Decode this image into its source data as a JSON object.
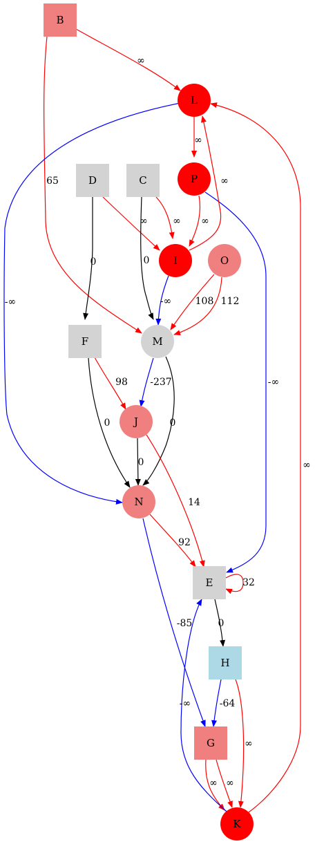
{
  "colors": {
    "red": "#ff0000",
    "salmon": "#f08080",
    "gray": "#d3d3d3",
    "lightblue": "#add8e6",
    "edge_red": "#ff0000",
    "edge_blue": "#0000ff",
    "edge_black": "#000000"
  },
  "nodes": {
    "B": {
      "label": "B",
      "shape": "square",
      "fill": "salmon"
    },
    "L": {
      "label": "L",
      "shape": "circle",
      "fill": "red"
    },
    "D": {
      "label": "D",
      "shape": "square",
      "fill": "gray"
    },
    "C": {
      "label": "C",
      "shape": "square",
      "fill": "gray"
    },
    "P": {
      "label": "P",
      "shape": "circle",
      "fill": "red"
    },
    "I": {
      "label": "I",
      "shape": "circle",
      "fill": "red"
    },
    "O": {
      "label": "O",
      "shape": "circle",
      "fill": "salmon"
    },
    "F": {
      "label": "F",
      "shape": "square",
      "fill": "gray"
    },
    "M": {
      "label": "M",
      "shape": "circle",
      "fill": "gray"
    },
    "J": {
      "label": "J",
      "shape": "circle",
      "fill": "salmon"
    },
    "N": {
      "label": "N",
      "shape": "circle",
      "fill": "salmon"
    },
    "E": {
      "label": "E",
      "shape": "square",
      "fill": "gray"
    },
    "H": {
      "label": "H",
      "shape": "square",
      "fill": "lightblue"
    },
    "G": {
      "label": "G",
      "shape": "square",
      "fill": "salmon"
    },
    "K": {
      "label": "K",
      "shape": "circle",
      "fill": "red"
    }
  },
  "edges": [
    {
      "id": "B-L",
      "from": "B",
      "to": "L",
      "label": "∞",
      "color": "edge_red"
    },
    {
      "id": "B-M",
      "from": "B",
      "to": "M",
      "label": "65",
      "color": "edge_red"
    },
    {
      "id": "L-P",
      "from": "L",
      "to": "P",
      "label": "∞",
      "color": "edge_red"
    },
    {
      "id": "L-N",
      "from": "L",
      "to": "N",
      "label": "-∞",
      "color": "edge_blue"
    },
    {
      "id": "D-I",
      "from": "D",
      "to": "I",
      "label": "∞",
      "color": "edge_red"
    },
    {
      "id": "D-F",
      "from": "D",
      "to": "F",
      "label": "0",
      "color": "edge_black"
    },
    {
      "id": "C-I",
      "from": "C",
      "to": "I",
      "label": "∞",
      "color": "edge_red"
    },
    {
      "id": "C-M",
      "from": "C",
      "to": "M",
      "label": "0",
      "color": "edge_black"
    },
    {
      "id": "P-I",
      "from": "P",
      "to": "I",
      "label": "∞",
      "color": "edge_red"
    },
    {
      "id": "P-E",
      "from": "P",
      "to": "E",
      "label": "-∞",
      "color": "edge_blue"
    },
    {
      "id": "I-L",
      "from": "I",
      "to": "L",
      "label": "∞",
      "color": "edge_red"
    },
    {
      "id": "I-M",
      "from": "I",
      "to": "M",
      "label": "-∞",
      "color": "edge_blue"
    },
    {
      "id": "O-M-108",
      "from": "O",
      "to": "M",
      "label": "108",
      "color": "edge_red"
    },
    {
      "id": "O-M-112",
      "from": "O",
      "to": "M",
      "label": "112",
      "color": "edge_red"
    },
    {
      "id": "F-J",
      "from": "F",
      "to": "J",
      "label": "98",
      "color": "edge_red"
    },
    {
      "id": "F-N",
      "from": "F",
      "to": "N",
      "label": "0",
      "color": "edge_black"
    },
    {
      "id": "M-J",
      "from": "M",
      "to": "J",
      "label": "-237",
      "color": "edge_blue"
    },
    {
      "id": "M-N",
      "from": "M",
      "to": "N",
      "label": "0",
      "color": "edge_black"
    },
    {
      "id": "J-N",
      "from": "J",
      "to": "N",
      "label": "0",
      "color": "edge_black"
    },
    {
      "id": "J-E",
      "from": "J",
      "to": "E",
      "label": "14",
      "color": "edge_red"
    },
    {
      "id": "N-E",
      "from": "N",
      "to": "E",
      "label": "92",
      "color": "edge_red"
    },
    {
      "id": "N-G",
      "from": "N",
      "to": "G",
      "label": "-85",
      "color": "edge_blue"
    },
    {
      "id": "E-E",
      "from": "E",
      "to": "E",
      "label": "32",
      "color": "edge_red"
    },
    {
      "id": "E-H",
      "from": "E",
      "to": "H",
      "label": "0",
      "color": "edge_black"
    },
    {
      "id": "H-G",
      "from": "H",
      "to": "G",
      "label": "-64",
      "color": "edge_blue"
    },
    {
      "id": "H-K",
      "from": "H",
      "to": "K",
      "label": "∞",
      "color": "edge_red"
    },
    {
      "id": "G-K-a",
      "from": "G",
      "to": "K",
      "label": "∞",
      "color": "edge_red"
    },
    {
      "id": "G-K-b",
      "from": "G",
      "to": "K",
      "label": "∞",
      "color": "edge_red"
    },
    {
      "id": "K-E",
      "from": "K",
      "to": "E",
      "label": "-∞",
      "color": "edge_blue"
    },
    {
      "id": "K-L",
      "from": "K",
      "to": "L",
      "label": "∞",
      "color": "edge_red"
    }
  ]
}
